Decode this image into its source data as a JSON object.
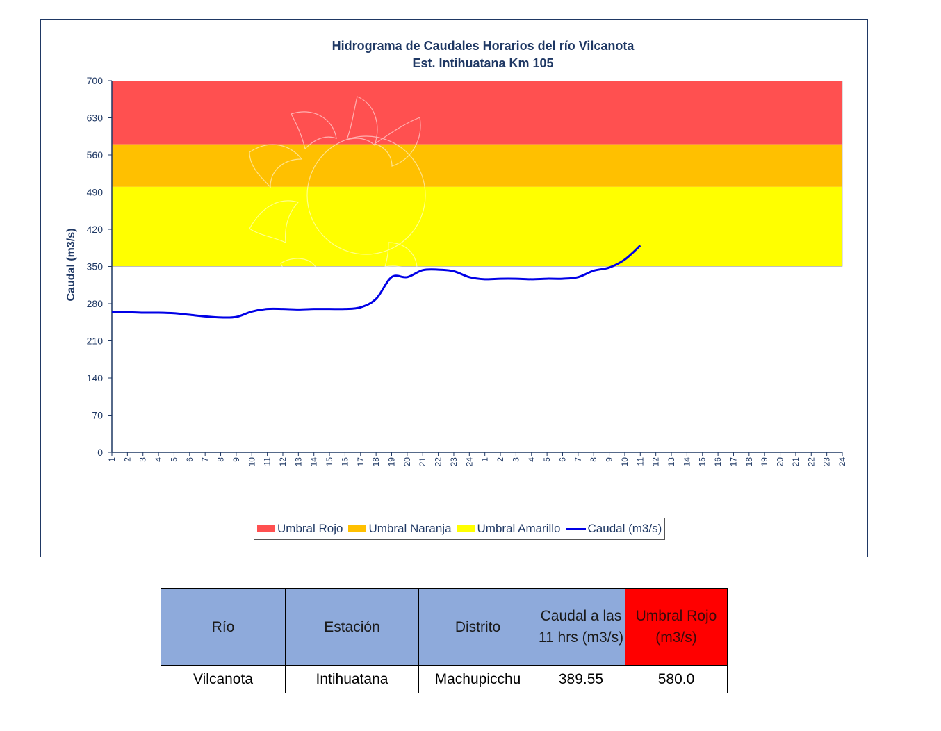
{
  "chart_data": {
    "type": "line",
    "title": "Hidrograma  de Caudales Horarios  del río Vilcanota",
    "subtitle": "Est. Intihuatana Km 105",
    "ylabel": "Caudal (m3/s)",
    "xlabel": "",
    "ylim": [
      0,
      700
    ],
    "yticks": [
      0,
      70,
      140,
      210,
      280,
      350,
      420,
      490,
      560,
      630,
      700
    ],
    "x_tick_labels": [
      "1",
      "2",
      "3",
      "4",
      "5",
      "6",
      "7",
      "8",
      "9",
      "10",
      "11",
      "12",
      "13",
      "14",
      "15",
      "16",
      "17",
      "18",
      "19",
      "20",
      "21",
      "22",
      "23",
      "24",
      "1",
      "2",
      "3",
      "4",
      "5",
      "6",
      "7",
      "8",
      "9",
      "10",
      "11",
      "12",
      "13",
      "14",
      "15",
      "16",
      "17",
      "18",
      "19",
      "20",
      "21",
      "22",
      "23",
      "24"
    ],
    "thresholds": [
      {
        "name": "Umbral Rojo",
        "from": 580,
        "to": 700,
        "color": "#ff5050"
      },
      {
        "name": "Umbral Naranja",
        "from": 500,
        "to": 580,
        "color": "#ffc000"
      },
      {
        "name": "Umbral Amarillo",
        "from": 350,
        "to": 500,
        "color": "#ffff00"
      }
    ],
    "series": [
      {
        "name": "Caudal (m3/s)",
        "color": "#0000e6",
        "values": [
          264,
          264,
          263,
          263,
          262,
          259,
          256,
          254,
          255,
          265,
          270,
          270,
          269,
          270,
          270,
          270,
          273,
          289,
          330,
          330,
          343,
          344,
          341,
          330,
          326,
          327,
          327,
          326,
          327,
          327,
          330,
          342,
          348,
          363,
          389.55
        ]
      }
    ],
    "legend": [
      "Umbral Rojo",
      "Umbral Naranja",
      "Umbral Amarillo",
      "Caudal (m3/s)"
    ],
    "legend_position": "bottom",
    "grid": false
  },
  "table": {
    "headers": [
      "Río",
      "Estación",
      "Distrito",
      "Caudal a las 11 hrs (m3/s)",
      "Umbral Rojo (m3/s)"
    ],
    "row": [
      "Vilcanota",
      "Intihuatana",
      "Machupicchu",
      "389.55",
      "580.0"
    ]
  }
}
